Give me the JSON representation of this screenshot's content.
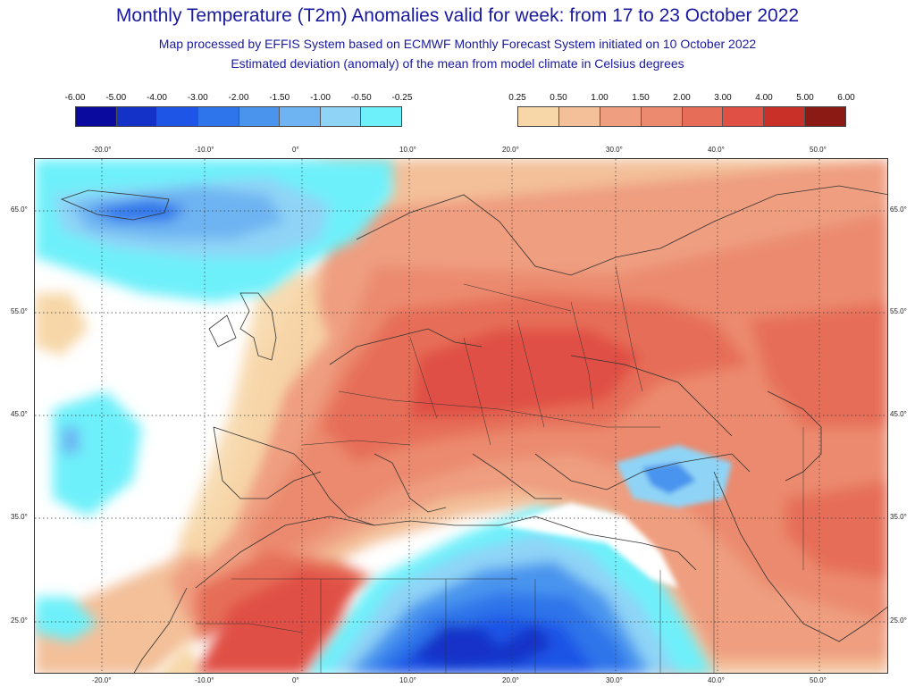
{
  "title": "Monthly Temperature (T2m) Anomalies valid for week: from 17 to 23 October 2022",
  "subtitle": "Map processed by EFFIS System based on ECMWF Monthly Forecast System initiated on 10 October 2022",
  "subtitle2": "Estimated deviation (anomaly) of the mean from model climate in Celsius degrees",
  "legend_cold": {
    "labels": [
      "-6.00",
      "-5.00",
      "-4.00",
      "-3.00",
      "-2.00",
      "-1.50",
      "-1.00",
      "-0.50",
      "-0.25"
    ],
    "colors": [
      "#0a0a9e",
      "#1432c8",
      "#1e55e6",
      "#2e74ea",
      "#4a94ee",
      "#6eb4f2",
      "#8fd4f6",
      "#6ef0fa"
    ]
  },
  "legend_warm": {
    "labels": [
      "0.25",
      "0.50",
      "1.00",
      "1.50",
      "2.00",
      "3.00",
      "4.00",
      "5.00",
      "6.00"
    ],
    "colors": [
      "#f7d7a8",
      "#f3c09a",
      "#ef9e80",
      "#eb8a6e",
      "#e66e58",
      "#e05044",
      "#c83028",
      "#8c1a14"
    ]
  },
  "axes": {
    "lon_labels": [
      "-20.0°",
      "-10.0°",
      "0°",
      "10.0°",
      "20.0°",
      "30.0°",
      "40.0°",
      "50.0°"
    ],
    "lat_labels": [
      "65.0°",
      "55.0°",
      "45.0°",
      "35.0°",
      "25.0°"
    ]
  }
}
